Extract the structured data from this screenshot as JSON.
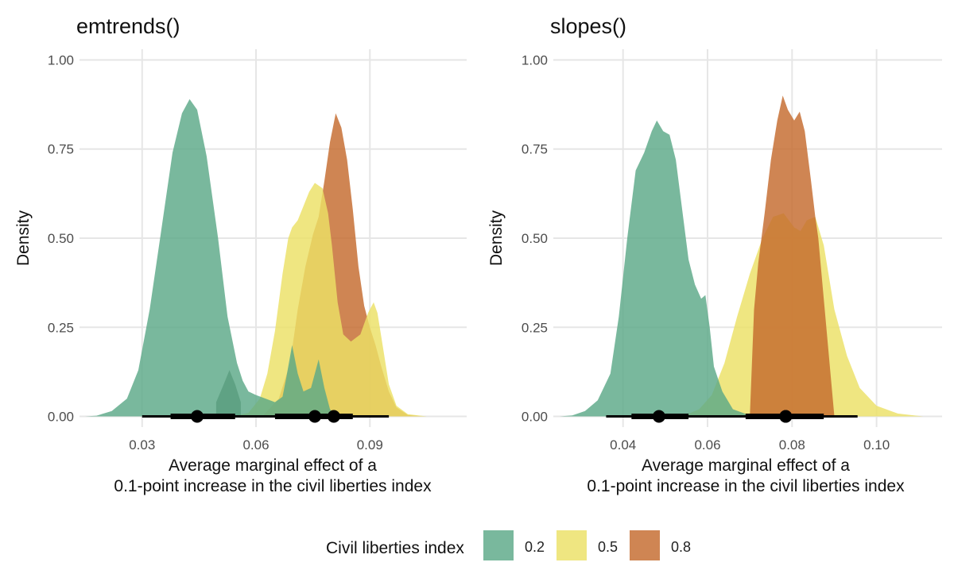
{
  "chart_data": [
    {
      "type": "area",
      "title": "emtrends()",
      "xlabel": "Average marginal effect of a\n0.1-point increase in the civil liberties index",
      "ylabel": "Density",
      "xlim": [
        0.0135,
        0.1155
      ],
      "ylim": [
        -0.03,
        1.03
      ],
      "x_ticks": [
        "0.03",
        "0.06",
        "0.09"
      ],
      "x_tick_values": [
        0.03,
        0.06,
        0.09
      ],
      "y_ticks": [
        "0.00",
        "0.25",
        "0.50",
        "0.75",
        "1.00"
      ],
      "y_tick_values": [
        0,
        0.25,
        0.5,
        0.75,
        1.0
      ],
      "grid": true,
      "series": [
        {
          "name": "0.8",
          "color": "#c56a2d",
          "points": [
            [
              0.015,
              0
            ],
            [
              0.058,
              0
            ],
            [
              0.062,
              0.004
            ],
            [
              0.066,
              0.05
            ],
            [
              0.069,
              0.15
            ],
            [
              0.071,
              0.3
            ],
            [
              0.073,
              0.42
            ],
            [
              0.075,
              0.51
            ],
            [
              0.0765,
              0.56
            ],
            [
              0.078,
              0.66
            ],
            [
              0.0795,
              0.77
            ],
            [
              0.081,
              0.85
            ],
            [
              0.0825,
              0.81
            ],
            [
              0.084,
              0.72
            ],
            [
              0.0855,
              0.58
            ],
            [
              0.087,
              0.42
            ],
            [
              0.0885,
              0.31
            ],
            [
              0.09,
              0.25
            ],
            [
              0.0915,
              0.2
            ],
            [
              0.093,
              0.14
            ],
            [
              0.095,
              0.07
            ],
            [
              0.097,
              0.025
            ],
            [
              0.1,
              0.004
            ],
            [
              0.104,
              0
            ],
            [
              0.11,
              0
            ]
          ]
        },
        {
          "name": "0.5",
          "color": "#ece065",
          "points": [
            [
              0.015,
              0
            ],
            [
              0.054,
              0
            ],
            [
              0.058,
              0.01
            ],
            [
              0.061,
              0.05
            ],
            [
              0.063,
              0.12
            ],
            [
              0.065,
              0.24
            ],
            [
              0.067,
              0.4
            ],
            [
              0.0685,
              0.5
            ],
            [
              0.0695,
              0.53
            ],
            [
              0.071,
              0.55
            ],
            [
              0.0725,
              0.59
            ],
            [
              0.074,
              0.63
            ],
            [
              0.0755,
              0.655
            ],
            [
              0.0775,
              0.64
            ],
            [
              0.079,
              0.57
            ],
            [
              0.08,
              0.48
            ],
            [
              0.0815,
              0.32
            ],
            [
              0.083,
              0.23
            ],
            [
              0.085,
              0.21
            ],
            [
              0.0875,
              0.23
            ],
            [
              0.0895,
              0.29
            ],
            [
              0.091,
              0.32
            ],
            [
              0.092,
              0.29
            ],
            [
              0.0935,
              0.19
            ],
            [
              0.095,
              0.09
            ],
            [
              0.097,
              0.03
            ],
            [
              0.1,
              0.006
            ],
            [
              0.105,
              0
            ],
            [
              0.111,
              0
            ]
          ]
        },
        {
          "name": "0.2",
          "color": "#5ba888",
          "points": [
            [
              0.015,
              0
            ],
            [
              0.018,
              0.002
            ],
            [
              0.022,
              0.015
            ],
            [
              0.026,
              0.05
            ],
            [
              0.029,
              0.13
            ],
            [
              0.032,
              0.3
            ],
            [
              0.035,
              0.52
            ],
            [
              0.038,
              0.74
            ],
            [
              0.0405,
              0.85
            ],
            [
              0.0425,
              0.89
            ],
            [
              0.0445,
              0.86
            ],
            [
              0.047,
              0.73
            ],
            [
              0.05,
              0.5
            ],
            [
              0.0525,
              0.28
            ],
            [
              0.055,
              0.15
            ],
            [
              0.0565,
              0.1
            ],
            [
              0.058,
              0.07
            ],
            [
              0.06,
              0.06
            ],
            [
              0.0625,
              0.05
            ],
            [
              0.065,
              0.04
            ],
            [
              0.067,
              0.055
            ],
            [
              0.068,
              0.11
            ],
            [
              0.0695,
              0.2
            ],
            [
              0.071,
              0.12
            ],
            [
              0.0725,
              0.07
            ],
            [
              0.0745,
              0.08
            ],
            [
              0.0765,
              0.16
            ],
            [
              0.078,
              0.08
            ],
            [
              0.0795,
              0.02
            ],
            [
              0.081,
              0.003
            ],
            [
              0.084,
              0
            ],
            [
              0.11,
              0
            ]
          ]
        }
      ],
      "bumps": [
        {
          "series": "0.2",
          "points": [
            [
              0.0495,
              0.04
            ],
            [
              0.0515,
              0.09
            ],
            [
              0.053,
              0.13
            ],
            [
              0.0545,
              0.09
            ],
            [
              0.056,
              0.04
            ]
          ],
          "color": "#4a8f6f"
        }
      ],
      "point_intervals": [
        {
          "series": "0.2",
          "center": 0.0445,
          "inner": [
            0.0375,
            0.0545
          ],
          "outer": [
            0.03,
            0.06
          ]
        },
        {
          "series": "0.5",
          "center": 0.0755,
          "inner": [
            0.065,
            0.083
          ],
          "outer": [
            0.058,
            0.095
          ]
        },
        {
          "series": "0.8",
          "center": 0.0805,
          "inner": [
            0.074,
            0.0855
          ],
          "outer": [
            0.07,
            0.093
          ]
        }
      ]
    },
    {
      "type": "area",
      "title": "slopes()",
      "xlabel": "Average marginal effect of a\n0.1-point increase in the civil liberties index",
      "ylabel": "Density",
      "xlim": [
        0.0235,
        0.1155
      ],
      "ylim": [
        -0.03,
        1.03
      ],
      "x_ticks": [
        "0.04",
        "0.06",
        "0.08",
        "0.10"
      ],
      "x_tick_values": [
        0.04,
        0.06,
        0.08,
        0.1
      ],
      "y_ticks": [
        "0.00",
        "0.25",
        "0.50",
        "0.75",
        "1.00"
      ],
      "y_tick_values": [
        0,
        0.25,
        0.5,
        0.75,
        1.0
      ],
      "grid": true,
      "series": [
        {
          "name": "0.5",
          "color": "#ece065",
          "points": [
            [
              0.025,
              0
            ],
            [
              0.054,
              0
            ],
            [
              0.058,
              0.02
            ],
            [
              0.061,
              0.06
            ],
            [
              0.064,
              0.15
            ],
            [
              0.067,
              0.28
            ],
            [
              0.07,
              0.4
            ],
            [
              0.073,
              0.5
            ],
            [
              0.0755,
              0.56
            ],
            [
              0.078,
              0.57
            ],
            [
              0.0805,
              0.53
            ],
            [
              0.082,
              0.52
            ],
            [
              0.0835,
              0.55
            ],
            [
              0.0855,
              0.56
            ],
            [
              0.0875,
              0.48
            ],
            [
              0.09,
              0.3
            ],
            [
              0.093,
              0.17
            ],
            [
              0.096,
              0.08
            ],
            [
              0.1,
              0.03
            ],
            [
              0.105,
              0.008
            ],
            [
              0.111,
              0
            ]
          ]
        },
        {
          "name": "0.8",
          "color": "#c56a2d",
          "points": [
            [
              0.025,
              0
            ],
            [
              0.07,
              0
            ],
            [
              0.071,
              0.3
            ],
            [
              0.072,
              0.43
            ],
            [
              0.0735,
              0.57
            ],
            [
              0.075,
              0.72
            ],
            [
              0.0765,
              0.83
            ],
            [
              0.0778,
              0.9
            ],
            [
              0.079,
              0.86
            ],
            [
              0.0805,
              0.83
            ],
            [
              0.0818,
              0.855
            ],
            [
              0.083,
              0.8
            ],
            [
              0.0845,
              0.66
            ],
            [
              0.0855,
              0.56
            ],
            [
              0.0862,
              0.5
            ],
            [
              0.09,
              0
            ],
            [
              0.111,
              0
            ]
          ]
        },
        {
          "name": "0.2",
          "color": "#5ba888",
          "points": [
            [
              0.025,
              0
            ],
            [
              0.028,
              0.003
            ],
            [
              0.031,
              0.015
            ],
            [
              0.034,
              0.045
            ],
            [
              0.037,
              0.12
            ],
            [
              0.039,
              0.28
            ],
            [
              0.041,
              0.5
            ],
            [
              0.043,
              0.69
            ],
            [
              0.045,
              0.74
            ],
            [
              0.0468,
              0.8
            ],
            [
              0.048,
              0.83
            ],
            [
              0.0495,
              0.8
            ],
            [
              0.051,
              0.79
            ],
            [
              0.0525,
              0.72
            ],
            [
              0.054,
              0.58
            ],
            [
              0.0555,
              0.44
            ],
            [
              0.057,
              0.37
            ],
            [
              0.0585,
              0.33
            ],
            [
              0.0595,
              0.34
            ],
            [
              0.0605,
              0.25
            ],
            [
              0.0615,
              0.14
            ],
            [
              0.0635,
              0.07
            ],
            [
              0.066,
              0.02
            ],
            [
              0.07,
              0.003
            ],
            [
              0.073,
              0
            ],
            [
              0.111,
              0
            ]
          ]
        }
      ],
      "bumps": [],
      "point_intervals": [
        {
          "series": "0.2",
          "center": 0.0485,
          "inner": [
            0.042,
            0.0555
          ],
          "outer": [
            0.036,
            0.0615
          ]
        },
        {
          "series": "0.5",
          "center": 0.0785,
          "inner": [
            0.069,
            0.0875
          ],
          "outer": [
            0.061,
            0.0955
          ]
        },
        {
          "series": "0.8",
          "center": 0.0785,
          "inner": [
            0.074,
            0.083
          ],
          "outer": [
            0.0715,
            0.086
          ]
        }
      ]
    }
  ],
  "legend": {
    "title": "Civil liberties index",
    "entries": [
      {
        "label": "0.2",
        "color": "#5ba888"
      },
      {
        "label": "0.5",
        "color": "#ece065"
      },
      {
        "label": "0.8",
        "color": "#c56a2d"
      }
    ],
    "position": "bottom"
  }
}
